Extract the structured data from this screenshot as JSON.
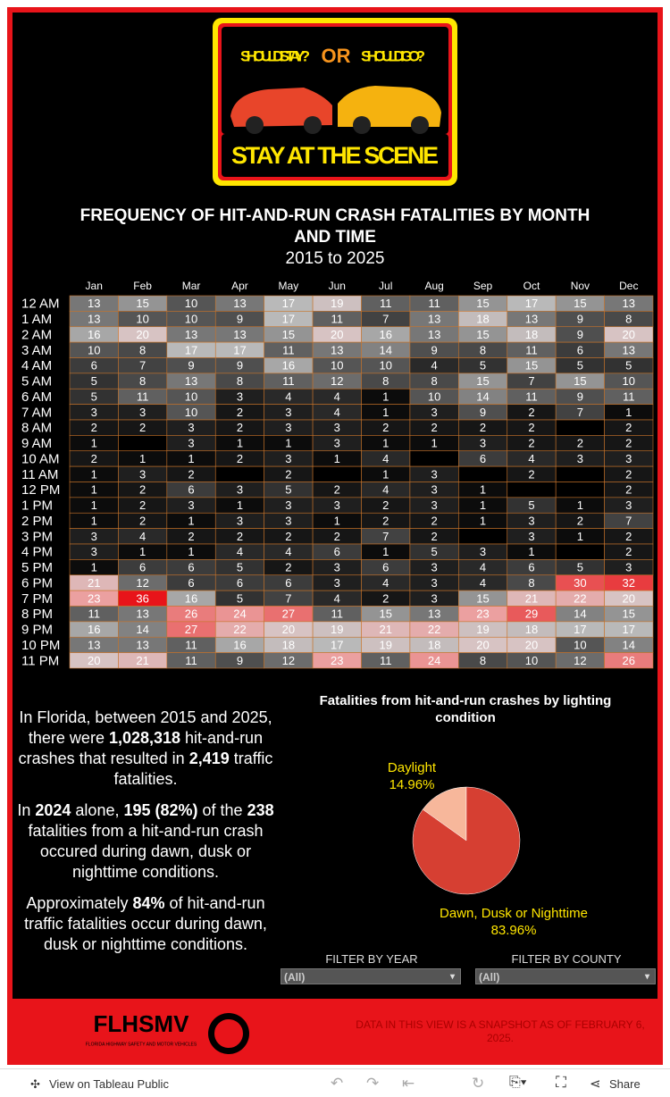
{
  "logo": {
    "stay": "SHOULD I STAY?",
    "or": "OR",
    "go": "SHOULD I GO?",
    "banner": "STAY AT THE SCENE"
  },
  "chart_data": [
    {
      "type": "heatmap",
      "title": "FREQUENCY OF HIT-AND-RUN CRASH FATALITIES BY MONTH AND TIME",
      "subtitle": "2015 to 2025",
      "categories": [
        "Jan",
        "Feb",
        "Mar",
        "Apr",
        "May",
        "Jun",
        "Jul",
        "Aug",
        "Sep",
        "Oct",
        "Nov",
        "Dec"
      ],
      "rows": [
        "12 AM",
        "1 AM",
        "2 AM",
        "3 AM",
        "4 AM",
        "5 AM",
        "6 AM",
        "7 AM",
        "8 AM",
        "9 AM",
        "10 AM",
        "11 AM",
        "12 PM",
        "1 PM",
        "2 PM",
        "3 PM",
        "4 PM",
        "5 PM",
        "6 PM",
        "7 PM",
        "8 PM",
        "9 PM",
        "10 PM",
        "11 PM"
      ],
      "values": [
        [
          13,
          15,
          10,
          13,
          17,
          19,
          11,
          11,
          15,
          17,
          15,
          13
        ],
        [
          13,
          10,
          10,
          9,
          17,
          11,
          7,
          13,
          18,
          13,
          9,
          8
        ],
        [
          16,
          20,
          13,
          13,
          15,
          20,
          16,
          13,
          15,
          18,
          9,
          20
        ],
        [
          10,
          8,
          17,
          17,
          11,
          13,
          14,
          9,
          8,
          11,
          6,
          13
        ],
        [
          6,
          7,
          9,
          9,
          16,
          10,
          10,
          4,
          5,
          15,
          5,
          5
        ],
        [
          5,
          8,
          13,
          8,
          11,
          12,
          8,
          8,
          15,
          7,
          15,
          10
        ],
        [
          5,
          11,
          10,
          3,
          4,
          4,
          1,
          10,
          14,
          11,
          9,
          11
        ],
        [
          3,
          3,
          10,
          2,
          3,
          4,
          1,
          3,
          9,
          2,
          7,
          1
        ],
        [
          2,
          2,
          3,
          2,
          3,
          3,
          2,
          2,
          2,
          2,
          null,
          2
        ],
        [
          1,
          null,
          3,
          1,
          1,
          3,
          1,
          1,
          3,
          2,
          2,
          2
        ],
        [
          2,
          1,
          1,
          2,
          3,
          1,
          4,
          null,
          6,
          4,
          3,
          3
        ],
        [
          1,
          3,
          2,
          null,
          2,
          null,
          1,
          3,
          null,
          2,
          null,
          2
        ],
        [
          1,
          2,
          6,
          3,
          5,
          2,
          4,
          3,
          1,
          null,
          null,
          2
        ],
        [
          1,
          2,
          3,
          1,
          3,
          3,
          2,
          3,
          1,
          5,
          1,
          3
        ],
        [
          1,
          2,
          1,
          3,
          3,
          1,
          2,
          2,
          1,
          3,
          2,
          7
        ],
        [
          3,
          4,
          2,
          2,
          2,
          2,
          7,
          2,
          null,
          3,
          1,
          2
        ],
        [
          3,
          1,
          1,
          4,
          4,
          6,
          1,
          5,
          3,
          1,
          null,
          2
        ],
        [
          1,
          6,
          6,
          5,
          2,
          3,
          6,
          3,
          4,
          6,
          5,
          3
        ],
        [
          21,
          12,
          6,
          6,
          6,
          3,
          4,
          3,
          4,
          8,
          30,
          32
        ],
        [
          23,
          36,
          16,
          5,
          7,
          4,
          2,
          3,
          15,
          21,
          22,
          20
        ],
        [
          11,
          13,
          26,
          24,
          27,
          11,
          15,
          13,
          23,
          29,
          14,
          15
        ],
        [
          16,
          14,
          27,
          22,
          20,
          19,
          21,
          22,
          19,
          18,
          17,
          17
        ],
        [
          13,
          13,
          11,
          16,
          18,
          17,
          19,
          18,
          20,
          20,
          10,
          14
        ],
        [
          20,
          21,
          11,
          9,
          12,
          23,
          11,
          24,
          8,
          10,
          12,
          26
        ]
      ]
    },
    {
      "type": "pie",
      "title": "Fatalities from hit-and-run crashes by lighting condition",
      "categories": [
        "Daylight",
        "Dawn, Dusk or Nighttime"
      ],
      "values": [
        14.96,
        83.96
      ],
      "value_labels": [
        "14.96%",
        "83.96%"
      ],
      "colors": [
        "#f7b79b",
        "#d63f32"
      ]
    }
  ],
  "facts": [
    [
      {
        "text": "In Florida, between 2015 and 2025, there were "
      },
      {
        "text": "1,028,318",
        "bold": true
      },
      {
        "text": " hit-and-run crashes that resulted in "
      },
      {
        "text": "2,419",
        "bold": true
      },
      {
        "text": " traffic fatalities."
      }
    ],
    [
      {
        "text": "In "
      },
      {
        "text": "2024",
        "bold": true
      },
      {
        "text": " alone, "
      },
      {
        "text": "195 (82%)",
        "bold": true
      },
      {
        "text": " of the "
      },
      {
        "text": "238",
        "bold": true
      },
      {
        "text": " fatalities from a hit-and-run crash occured during dawn, dusk or nighttime conditions."
      }
    ],
    [
      {
        "text": "Approximately "
      },
      {
        "text": "84%",
        "bold": true
      },
      {
        "text": " of hit-and-run traffic fatalities occur during dawn, dusk or nighttime conditions."
      }
    ]
  ],
  "filters": [
    {
      "label": "FILTER BY YEAR",
      "value": "(All)"
    },
    {
      "label": "FILTER BY COUNTY",
      "value": "(All)"
    }
  ],
  "footer": {
    "org": "FLHSMV",
    "org_sub": "FLORIDA HIGHWAY SAFETY AND MOTOR VEHICLES",
    "note": "DATA IN THIS VIEW IS A SNAPSHOT AS OF FEBRUARY 6, 2025."
  },
  "toolbar": {
    "view": "View on Tableau Public",
    "share": "Share"
  }
}
